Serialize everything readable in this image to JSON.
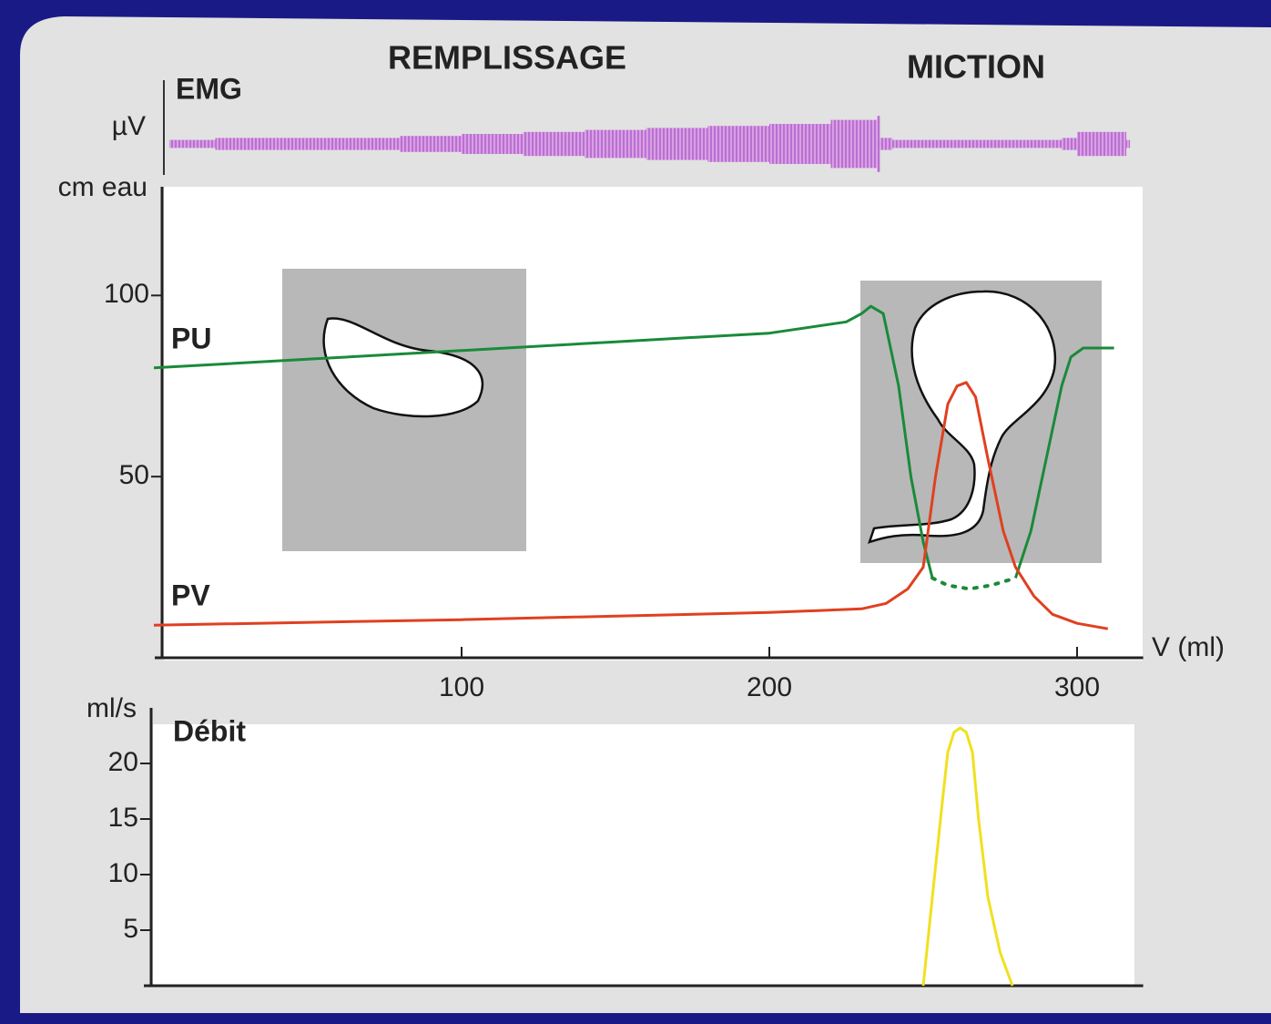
{
  "chart_data": [
    {
      "type": "emg",
      "title": "EMG",
      "ylabel": "µV",
      "color": "#c070d8",
      "x": [
        5,
        20,
        40,
        60,
        80,
        100,
        120,
        140,
        160,
        180,
        200,
        220,
        235,
        236,
        240,
        260,
        280,
        290,
        295,
        300,
        310,
        316
      ],
      "values": [
        2,
        3,
        3,
        3,
        4,
        5,
        6,
        7,
        8,
        9,
        10,
        12,
        14,
        3,
        2,
        2,
        2,
        2,
        3,
        6,
        6,
        2
      ]
    },
    {
      "type": "line",
      "ylabel": "cm eau",
      "xlabel": "V (ml)",
      "annotations": [
        "REMPLISSAGE",
        "MICTION"
      ],
      "xlim": [
        0,
        320
      ],
      "ylim": [
        0,
        130
      ],
      "xticks": [
        100,
        200,
        300
      ],
      "yticks": [
        50,
        100
      ],
      "series": [
        {
          "name": "PU",
          "color": "#1a8a3a",
          "x": [
            0,
            50,
            100,
            150,
            200,
            225,
            230,
            233,
            237,
            242,
            246,
            250,
            253,
            null,
            280,
            285,
            290,
            295,
            298,
            302,
            312
          ],
          "values": [
            80,
            82.4,
            84.8,
            87.2,
            89.6,
            92.7,
            95,
            97,
            95,
            75,
            50,
            32,
            22,
            null,
            22,
            35,
            55,
            75,
            83,
            85.5,
            85.5
          ]
        },
        {
          "color": "#1a8a3a",
          "dashed": true,
          "x": [
            253,
            258,
            265,
            272,
            280
          ],
          "values": [
            22,
            20,
            19,
            20,
            22
          ]
        },
        {
          "name": "PV",
          "color": "#e04020",
          "x": [
            0,
            100,
            200,
            230,
            238,
            245,
            250,
            254,
            258,
            261,
            264,
            267,
            271,
            276,
            280,
            286,
            292,
            300,
            310
          ],
          "values": [
            9,
            10.5,
            12.5,
            13.5,
            15,
            19,
            25,
            50,
            70,
            75,
            76,
            72,
            55,
            35,
            25,
            17,
            12,
            9.5,
            8
          ]
        }
      ]
    },
    {
      "type": "line",
      "title": "Débit",
      "ylabel": "ml/s",
      "xlim": [
        0,
        320
      ],
      "ylim": [
        0,
        25
      ],
      "yticks": [
        5,
        10,
        15,
        20
      ],
      "series": [
        {
          "color": "#f0e020",
          "x": [
            250,
            253,
            256,
            258,
            260,
            262,
            264,
            266,
            268,
            271,
            275,
            279
          ],
          "values": [
            0,
            8,
            16,
            21,
            22.8,
            23.2,
            22.8,
            21,
            15,
            8,
            3,
            0
          ]
        }
      ]
    }
  ]
}
